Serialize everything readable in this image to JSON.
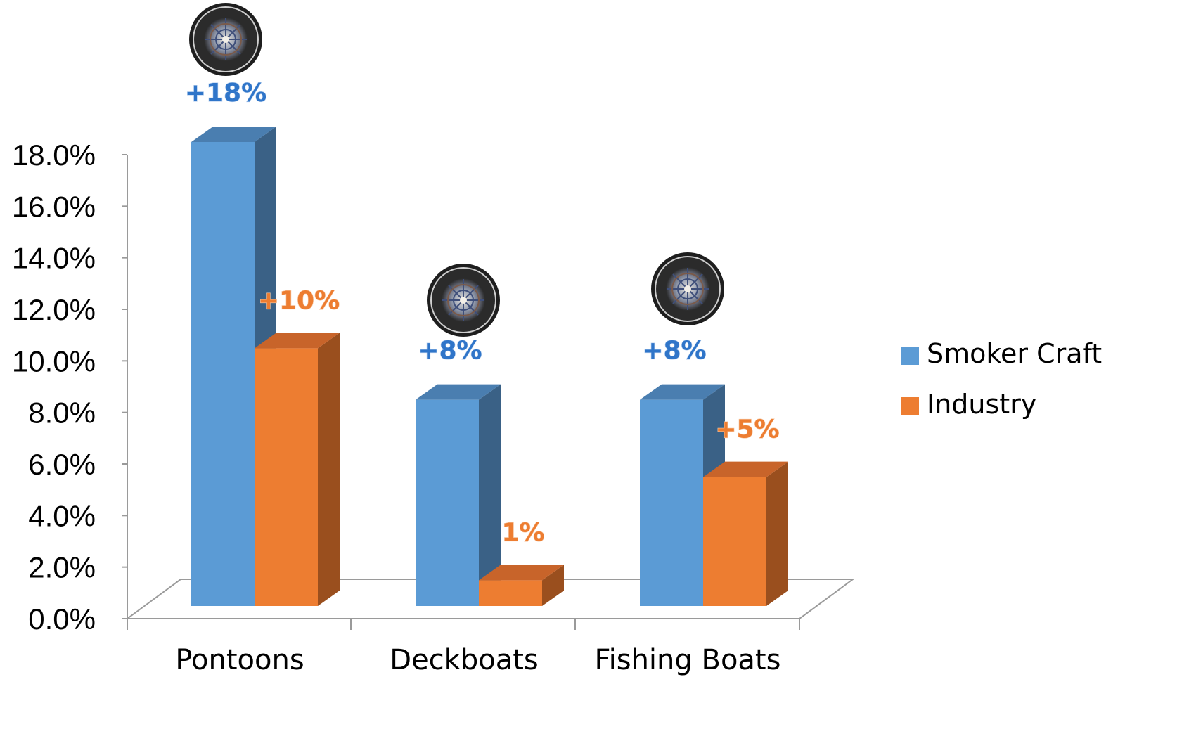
{
  "chart_data": {
    "type": "bar",
    "categories": [
      "Pontoons",
      "Deckboats",
      "Fishing Boats"
    ],
    "series": [
      {
        "name": "Smoker Craft",
        "values": [
          18.0,
          8.0,
          8.0
        ],
        "labels": [
          "+18%",
          "+8%",
          "+8%"
        ],
        "color": "#5b9bd5",
        "side_color": "#3a6186",
        "top_color": "#4a7eb0",
        "label_color": "#2f75c9"
      },
      {
        "name": "Industry",
        "values": [
          10.0,
          1.0,
          5.0
        ],
        "labels": [
          "+10%",
          "1%",
          "+5%"
        ],
        "color": "#ed7d31",
        "side_color": "#9a4f1e",
        "top_color": "#c8642a",
        "label_color": "#ed7d31"
      }
    ],
    "yticks": [
      "0.0%",
      "2.0%",
      "4.0%",
      "6.0%",
      "8.0%",
      "10.0%",
      "12.0%",
      "14.0%",
      "16.0%",
      "18.0%"
    ],
    "ylim": [
      0,
      18
    ],
    "legend_position": "right",
    "chart_style": "3d-clustered-column",
    "logo_badge": {
      "text": "SMOKER CRAFT INCORPORATED",
      "above_categories": [
        "Pontoons",
        "Deckboats",
        "Fishing Boats"
      ]
    }
  }
}
